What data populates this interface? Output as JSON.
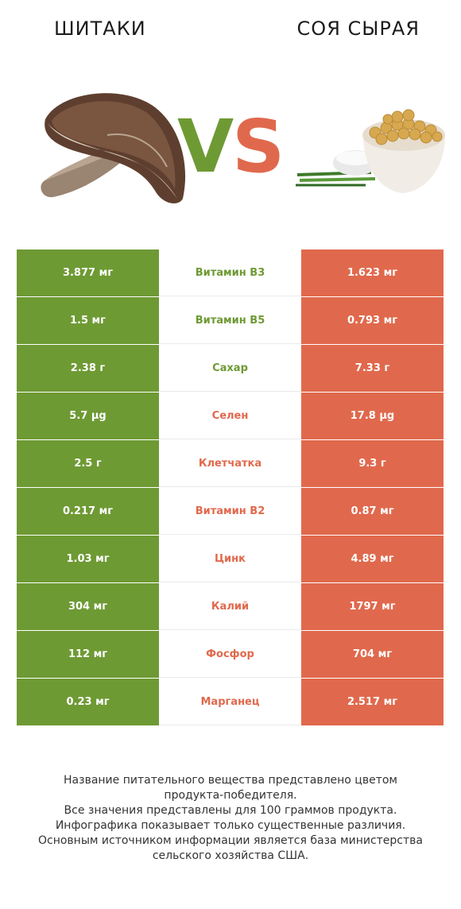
{
  "header": {
    "left_title": "ШИТАКИ",
    "right_title": "СОЯ СЫРАЯ",
    "vs_v": "V",
    "vs_s": "S"
  },
  "colors": {
    "left_product": "#6e9a34",
    "right_product": "#e0694d"
  },
  "icons": {
    "left": "shiitake-mushroom-image",
    "right": "soybeans-bowl-image"
  },
  "chart_data": {
    "type": "table",
    "columns": [
      "ШИТАКИ",
      "",
      "СОЯ СЫРАЯ"
    ],
    "rows": [
      {
        "left": "3.877 мг",
        "nutrient": "Витамин B3",
        "right": "1.623 мг",
        "winner": "left"
      },
      {
        "left": "1.5 мг",
        "nutrient": "Витамин B5",
        "right": "0.793 мг",
        "winner": "left"
      },
      {
        "left": "2.38 г",
        "nutrient": "Сахар",
        "right": "7.33 г",
        "winner": "left"
      },
      {
        "left": "5.7 µg",
        "nutrient": "Селен",
        "right": "17.8 µg",
        "winner": "right"
      },
      {
        "left": "2.5 г",
        "nutrient": "Клетчатка",
        "right": "9.3 г",
        "winner": "right"
      },
      {
        "left": "0.217 мг",
        "nutrient": "Витамин B2",
        "right": "0.87 мг",
        "winner": "right"
      },
      {
        "left": "1.03 мг",
        "nutrient": "Цинк",
        "right": "4.89 мг",
        "winner": "right"
      },
      {
        "left": "304 мг",
        "nutrient": "Калий",
        "right": "1797 мг",
        "winner": "right"
      },
      {
        "left": "112 мг",
        "nutrient": "Фосфор",
        "right": "704 мг",
        "winner": "right"
      },
      {
        "left": "0.23 мг",
        "nutrient": "Марганец",
        "right": "2.517 мг",
        "winner": "right"
      }
    ]
  },
  "footer": {
    "lines": [
      "Название питательного вещества представлено цветом",
      "продукта-победителя.",
      "Все значения представлены для 100 граммов продукта.",
      "Инфографика показывает только существенные различия.",
      "Основным источником информации является база министерства",
      "сельского хозяйства США."
    ]
  }
}
